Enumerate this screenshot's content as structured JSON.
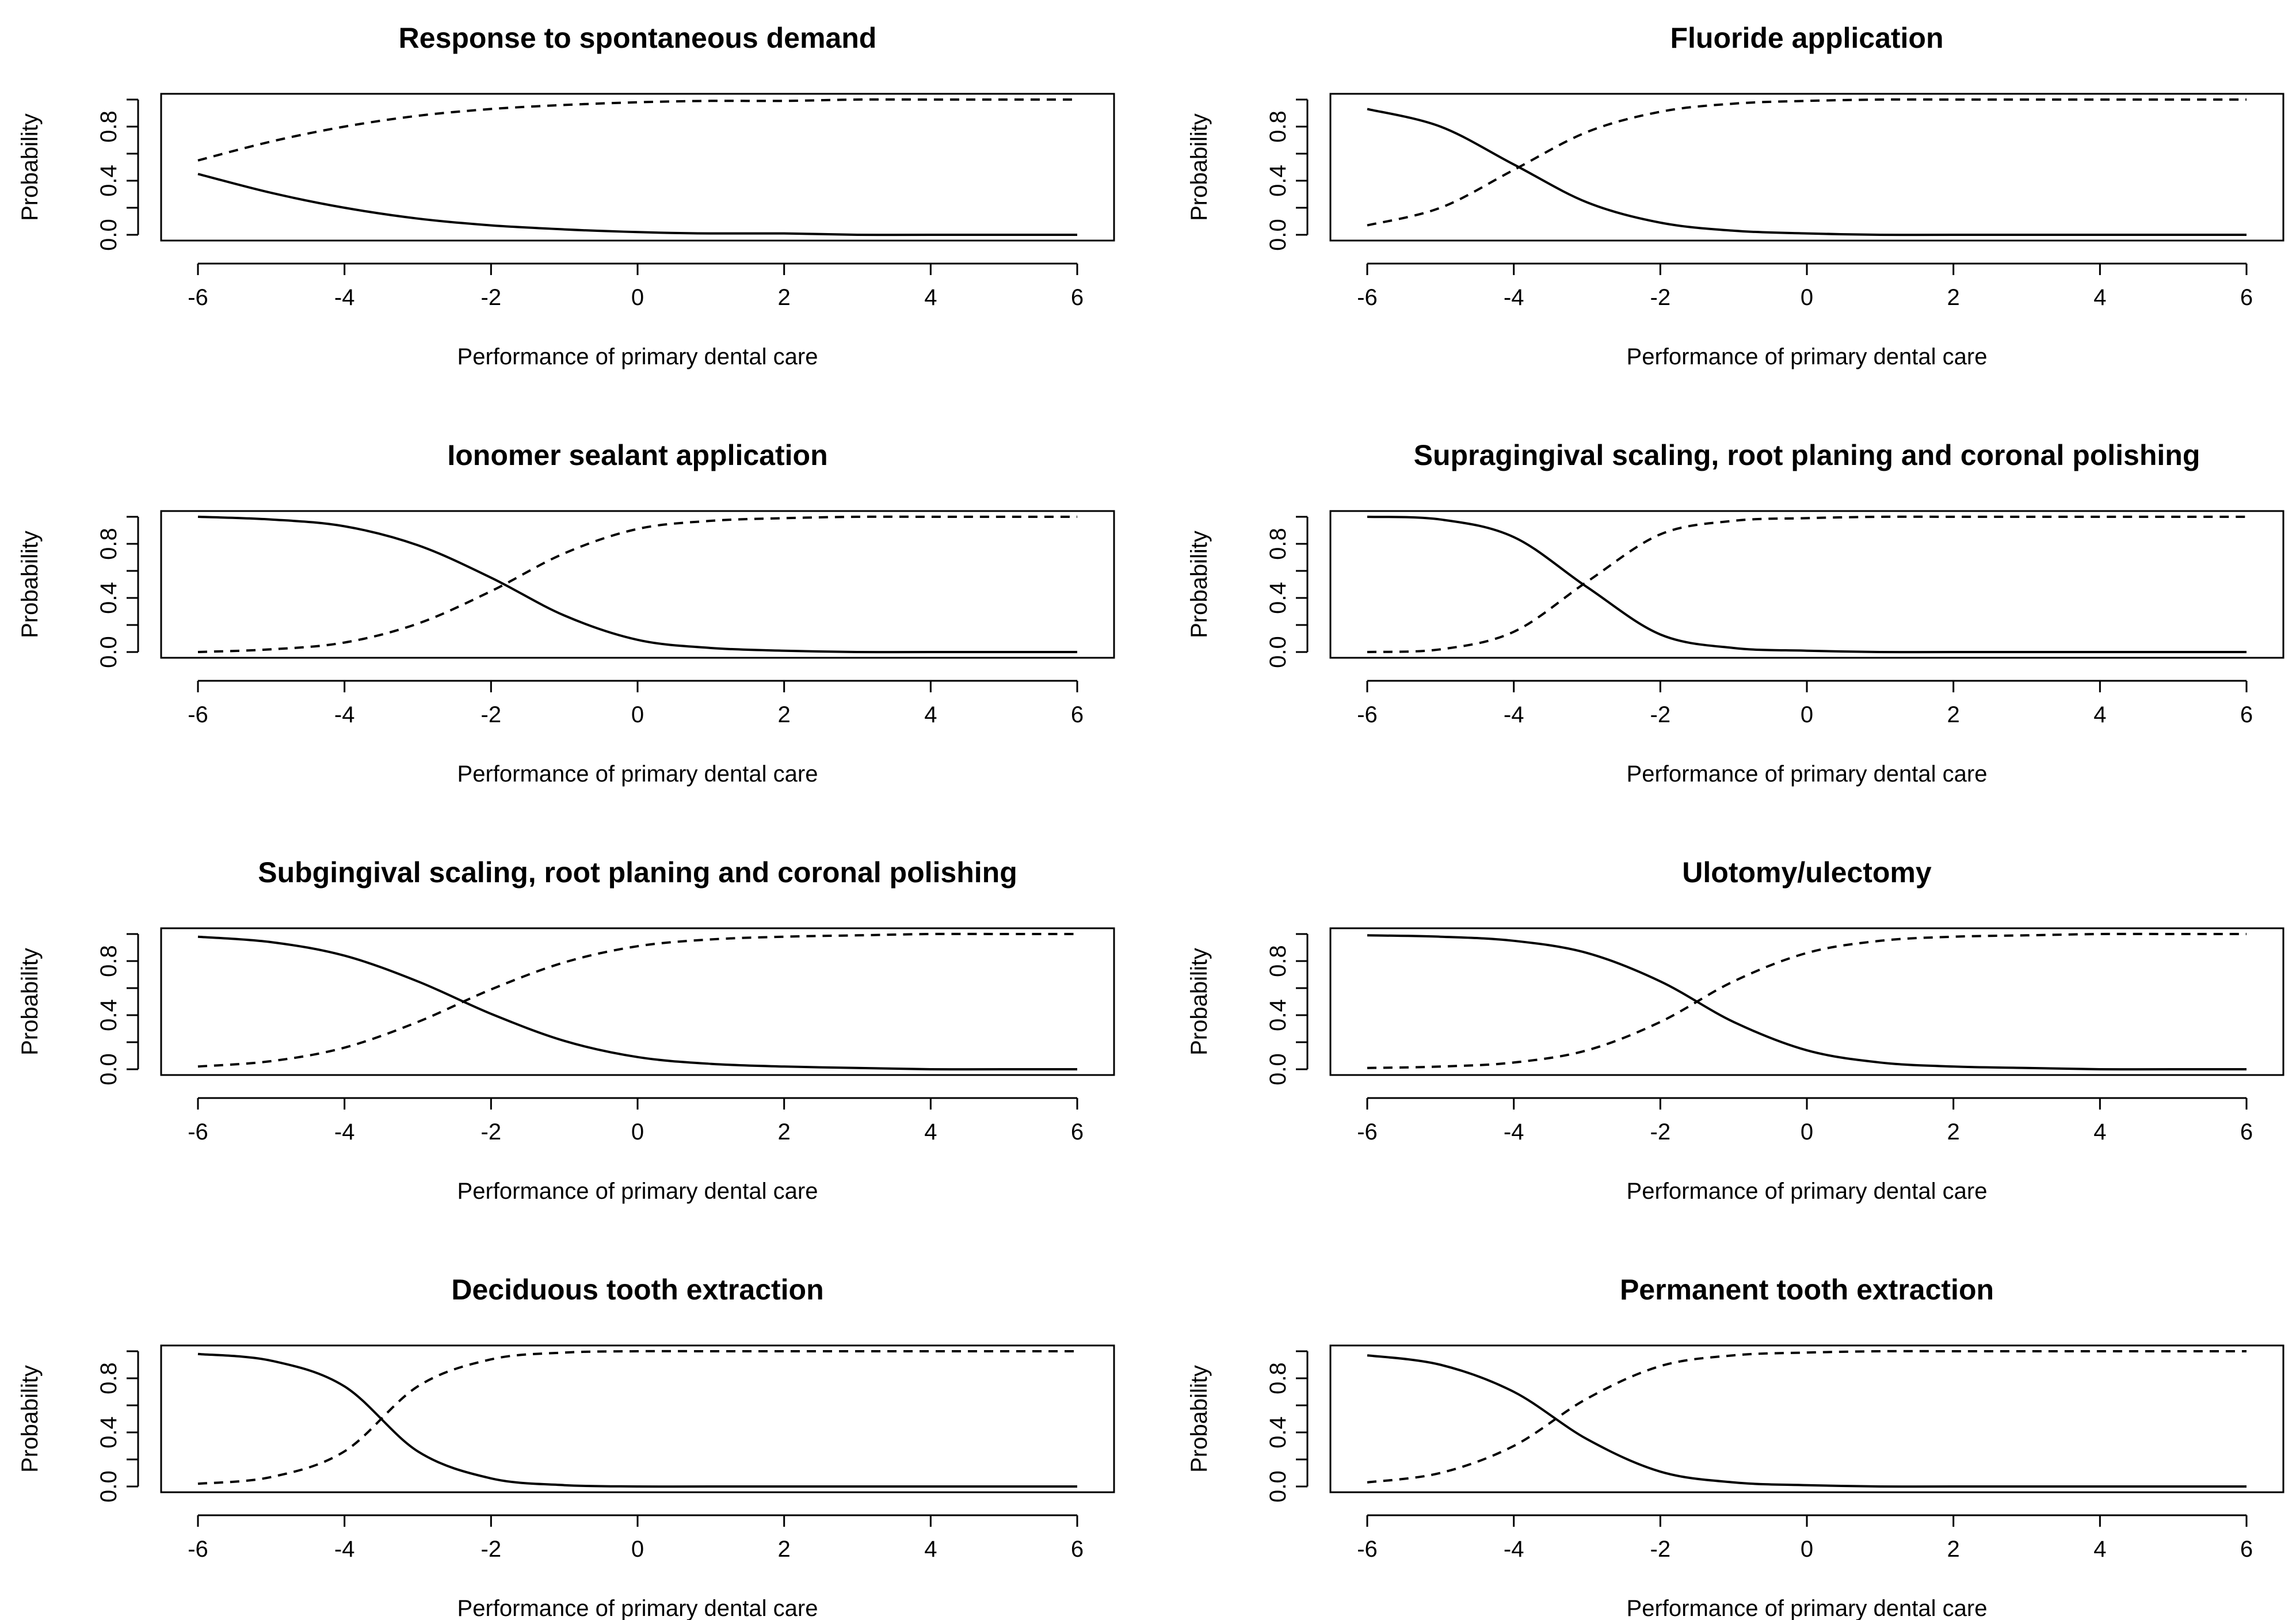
{
  "chart_data": [
    {
      "type": "line",
      "title": "Response to spontaneous demand",
      "xlabel": "Performance of primary dental care",
      "ylabel": "Probability",
      "xlim": [
        -6,
        6
      ],
      "ylim": [
        0,
        1
      ],
      "xticks": [
        "-6",
        "-4",
        "-2",
        "0",
        "2",
        "4",
        "6"
      ],
      "yticks": [
        "0.0",
        "0.4",
        "0.8"
      ],
      "grid": false,
      "x": [
        -6,
        -5,
        -4,
        -3,
        -2,
        -1,
        0,
        1,
        2,
        3,
        4,
        5,
        6
      ],
      "series": [
        {
          "name": "solid",
          "style": "solid",
          "values": [
            0.45,
            0.31,
            0.2,
            0.12,
            0.07,
            0.04,
            0.02,
            0.01,
            0.01,
            0.0,
            0.0,
            0.0,
            0.0
          ]
        },
        {
          "name": "dashed",
          "style": "dashed",
          "values": [
            0.55,
            0.69,
            0.8,
            0.88,
            0.93,
            0.96,
            0.98,
            0.99,
            0.99,
            1.0,
            1.0,
            1.0,
            1.0
          ]
        }
      ]
    },
    {
      "type": "line",
      "title": "Fluoride application",
      "xlabel": "Performance of primary dental care",
      "ylabel": "Probability",
      "xlim": [
        -6,
        6
      ],
      "ylim": [
        0,
        1
      ],
      "xticks": [
        "-6",
        "-4",
        "-2",
        "0",
        "2",
        "4",
        "6"
      ],
      "yticks": [
        "0.0",
        "0.4",
        "0.8"
      ],
      "grid": false,
      "x": [
        -6,
        -5,
        -4,
        -3,
        -2,
        -1,
        0,
        1,
        2,
        3,
        4,
        5,
        6
      ],
      "series": [
        {
          "name": "solid",
          "style": "solid",
          "values": [
            0.93,
            0.8,
            0.52,
            0.24,
            0.09,
            0.03,
            0.01,
            0.0,
            0.0,
            0.0,
            0.0,
            0.0,
            0.0
          ]
        },
        {
          "name": "dashed",
          "style": "dashed",
          "values": [
            0.07,
            0.2,
            0.48,
            0.76,
            0.91,
            0.97,
            0.99,
            1.0,
            1.0,
            1.0,
            1.0,
            1.0,
            1.0
          ]
        }
      ]
    },
    {
      "type": "line",
      "title": "Ionomer sealant application",
      "xlabel": "Performance of primary dental care",
      "ylabel": "Probability",
      "xlim": [
        -6,
        6
      ],
      "ylim": [
        0,
        1
      ],
      "xticks": [
        "-6",
        "-4",
        "-2",
        "0",
        "2",
        "4",
        "6"
      ],
      "yticks": [
        "0.0",
        "0.4",
        "0.8"
      ],
      "grid": false,
      "x": [
        -6,
        -5,
        -4,
        -3,
        -2,
        -1,
        0,
        1,
        2,
        3,
        4,
        5,
        6
      ],
      "series": [
        {
          "name": "solid",
          "style": "solid",
          "values": [
            1.0,
            0.98,
            0.93,
            0.79,
            0.55,
            0.27,
            0.09,
            0.03,
            0.01,
            0.0,
            0.0,
            0.0,
            0.0
          ]
        },
        {
          "name": "dashed",
          "style": "dashed",
          "values": [
            0.0,
            0.02,
            0.07,
            0.21,
            0.45,
            0.73,
            0.91,
            0.97,
            0.99,
            1.0,
            1.0,
            1.0,
            1.0
          ]
        }
      ]
    },
    {
      "type": "line",
      "title": "Supragingival scaling, root planing and coronal polishing",
      "xlabel": "Performance of primary dental care",
      "ylabel": "Probability",
      "xlim": [
        -6,
        6
      ],
      "ylim": [
        0,
        1
      ],
      "xticks": [
        "-6",
        "-4",
        "-2",
        "0",
        "2",
        "4",
        "6"
      ],
      "yticks": [
        "0.0",
        "0.4",
        "0.8"
      ],
      "grid": false,
      "x": [
        -6,
        -5,
        -4,
        -3,
        -2,
        -1,
        0,
        1,
        2,
        3,
        4,
        5,
        6
      ],
      "series": [
        {
          "name": "solid",
          "style": "solid",
          "values": [
            1.0,
            0.98,
            0.85,
            0.48,
            0.13,
            0.03,
            0.01,
            0.0,
            0.0,
            0.0,
            0.0,
            0.0,
            0.0
          ]
        },
        {
          "name": "dashed",
          "style": "dashed",
          "values": [
            0.0,
            0.02,
            0.15,
            0.52,
            0.87,
            0.97,
            0.99,
            1.0,
            1.0,
            1.0,
            1.0,
            1.0,
            1.0
          ]
        }
      ]
    },
    {
      "type": "line",
      "title": "Subgingival scaling, root planing and coronal polishing",
      "xlabel": "Performance of primary dental care",
      "ylabel": "Probability",
      "xlim": [
        -6,
        6
      ],
      "ylim": [
        0,
        1
      ],
      "xticks": [
        "-6",
        "-4",
        "-2",
        "0",
        "2",
        "4",
        "6"
      ],
      "yticks": [
        "0.0",
        "0.4",
        "0.8"
      ],
      "grid": false,
      "x": [
        -6,
        -5,
        -4,
        -3,
        -2,
        -1,
        0,
        1,
        2,
        3,
        4,
        5,
        6
      ],
      "series": [
        {
          "name": "solid",
          "style": "solid",
          "values": [
            0.98,
            0.94,
            0.84,
            0.65,
            0.41,
            0.21,
            0.09,
            0.04,
            0.02,
            0.01,
            0.0,
            0.0,
            0.0
          ]
        },
        {
          "name": "dashed",
          "style": "dashed",
          "values": [
            0.02,
            0.06,
            0.16,
            0.35,
            0.59,
            0.79,
            0.91,
            0.96,
            0.98,
            0.99,
            1.0,
            1.0,
            1.0
          ]
        }
      ]
    },
    {
      "type": "line",
      "title": "Ulotomy/ulectomy",
      "xlabel": "Performance of primary dental care",
      "ylabel": "Probability",
      "xlim": [
        -6,
        6
      ],
      "ylim": [
        0,
        1
      ],
      "xticks": [
        "-6",
        "-4",
        "-2",
        "0",
        "2",
        "4",
        "6"
      ],
      "yticks": [
        "0.0",
        "0.4",
        "0.8"
      ],
      "grid": false,
      "x": [
        -6,
        -5,
        -4,
        -3,
        -2,
        -1,
        0,
        1,
        2,
        3,
        4,
        5,
        6
      ],
      "series": [
        {
          "name": "solid",
          "style": "solid",
          "values": [
            0.99,
            0.98,
            0.95,
            0.86,
            0.65,
            0.35,
            0.14,
            0.05,
            0.02,
            0.01,
            0.0,
            0.0,
            0.0
          ]
        },
        {
          "name": "dashed",
          "style": "dashed",
          "values": [
            0.01,
            0.02,
            0.05,
            0.14,
            0.35,
            0.65,
            0.86,
            0.95,
            0.98,
            0.99,
            1.0,
            1.0,
            1.0
          ]
        }
      ]
    },
    {
      "type": "line",
      "title": "Deciduous tooth extraction",
      "xlabel": "Performance of primary dental care",
      "ylabel": "Probability",
      "xlim": [
        -6,
        6
      ],
      "ylim": [
        0,
        1
      ],
      "xticks": [
        "-6",
        "-4",
        "-2",
        "0",
        "2",
        "4",
        "6"
      ],
      "yticks": [
        "0.0",
        "0.4",
        "0.8"
      ],
      "grid": false,
      "x": [
        -6,
        -5,
        -4,
        -3,
        -2,
        -1,
        0,
        1,
        2,
        3,
        4,
        5,
        6
      ],
      "series": [
        {
          "name": "solid",
          "style": "solid",
          "values": [
            0.98,
            0.93,
            0.74,
            0.26,
            0.06,
            0.01,
            0.0,
            0.0,
            0.0,
            0.0,
            0.0,
            0.0,
            0.0
          ]
        },
        {
          "name": "dashed",
          "style": "dashed",
          "values": [
            0.02,
            0.07,
            0.26,
            0.74,
            0.94,
            0.99,
            1.0,
            1.0,
            1.0,
            1.0,
            1.0,
            1.0,
            1.0
          ]
        }
      ]
    },
    {
      "type": "line",
      "title": "Permanent tooth extraction",
      "xlabel": "Performance of primary dental care",
      "ylabel": "Probability",
      "xlim": [
        -6,
        6
      ],
      "ylim": [
        0,
        1
      ],
      "xticks": [
        "-6",
        "-4",
        "-2",
        "0",
        "2",
        "4",
        "6"
      ],
      "yticks": [
        "0.0",
        "0.4",
        "0.8"
      ],
      "grid": false,
      "x": [
        -6,
        -5,
        -4,
        -3,
        -2,
        -1,
        0,
        1,
        2,
        3,
        4,
        5,
        6
      ],
      "series": [
        {
          "name": "solid",
          "style": "solid",
          "values": [
            0.97,
            0.9,
            0.7,
            0.35,
            0.11,
            0.03,
            0.01,
            0.0,
            0.0,
            0.0,
            0.0,
            0.0,
            0.0
          ]
        },
        {
          "name": "dashed",
          "style": "dashed",
          "values": [
            0.03,
            0.1,
            0.3,
            0.65,
            0.89,
            0.97,
            0.99,
            1.0,
            1.0,
            1.0,
            1.0,
            1.0,
            1.0
          ]
        }
      ]
    }
  ]
}
